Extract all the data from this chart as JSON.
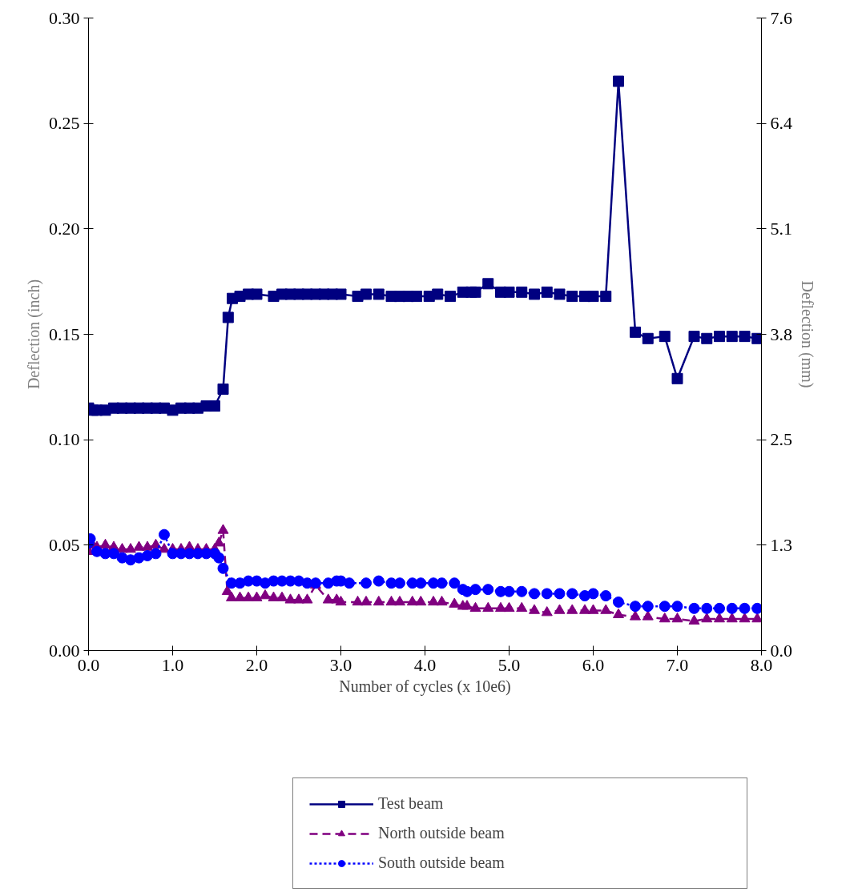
{
  "chart_data": {
    "type": "line",
    "xlabel": "Number of cycles (x 10e6)",
    "ylabel": "Deflection (inch)",
    "y2label": "Deflection (mm)",
    "xlim": [
      0,
      8
    ],
    "xticks": [
      {
        "value": 0,
        "label": "0.0"
      },
      {
        "value": 1,
        "label": "1.0"
      },
      {
        "value": 2,
        "label": "2.0"
      },
      {
        "value": 3,
        "label": "3.0"
      },
      {
        "value": 4,
        "label": "4.0"
      },
      {
        "value": 5,
        "label": "5.0"
      },
      {
        "value": 6,
        "label": "6.0"
      },
      {
        "value": 7,
        "label": "7.0"
      },
      {
        "value": 8,
        "label": "8.0"
      }
    ],
    "ylim": [
      0,
      0.3
    ],
    "yticks": [
      {
        "value": 0,
        "label": "0.00"
      },
      {
        "value": 0.05,
        "label": "0.05"
      },
      {
        "value": 0.1,
        "label": "0.10"
      },
      {
        "value": 0.15,
        "label": "0.15"
      },
      {
        "value": 0.2,
        "label": "0.20"
      },
      {
        "value": 0.25,
        "label": "0.25"
      },
      {
        "value": 0.3,
        "label": "0.30"
      }
    ],
    "y2lim": [
      0,
      7.62
    ],
    "y2ticks": [
      {
        "value": 0,
        "label": "0.0"
      },
      {
        "value": 1.27,
        "label": "1.3"
      },
      {
        "value": 2.54,
        "label": "2.5"
      },
      {
        "value": 3.81,
        "label": "3.8"
      },
      {
        "value": 5.08,
        "label": "5.1"
      },
      {
        "value": 6.35,
        "label": "6.4"
      },
      {
        "value": 7.62,
        "label": "7.6"
      }
    ],
    "grid": false,
    "legend": "bottom",
    "series": [
      {
        "name": "Test beam",
        "color": "#000080",
        "marker": "square",
        "line_style": "solid",
        "x": [
          0,
          0.05,
          0.1,
          0.2,
          0.3,
          0.4,
          0.5,
          0.6,
          0.7,
          0.8,
          0.9,
          1.0,
          1.1,
          1.2,
          1.3,
          1.4,
          1.5,
          1.6,
          1.66,
          1.71,
          1.8,
          1.9,
          2.0,
          2.2,
          2.3,
          2.4,
          2.5,
          2.6,
          2.7,
          2.8,
          2.9,
          3.0,
          3.2,
          3.3,
          3.45,
          3.6,
          3.7,
          3.8,
          3.9,
          4.05,
          4.15,
          4.3,
          4.45,
          4.55,
          4.6,
          4.75,
          4.9,
          5.0,
          5.15,
          5.3,
          5.45,
          5.6,
          5.75,
          5.9,
          6.0,
          6.15,
          6.3,
          6.5,
          6.65,
          6.85,
          7.0,
          7.2,
          7.35,
          7.5,
          7.65,
          7.8,
          7.95
        ],
        "values": [
          0.115,
          0.114,
          0.114,
          0.114,
          0.115,
          0.115,
          0.115,
          0.115,
          0.115,
          0.115,
          0.115,
          0.114,
          0.115,
          0.115,
          0.115,
          0.116,
          0.116,
          0.124,
          0.158,
          0.167,
          0.168,
          0.169,
          0.169,
          0.168,
          0.169,
          0.169,
          0.169,
          0.169,
          0.169,
          0.169,
          0.169,
          0.169,
          0.168,
          0.169,
          0.169,
          0.168,
          0.168,
          0.168,
          0.168,
          0.168,
          0.169,
          0.168,
          0.17,
          0.17,
          0.17,
          0.174,
          0.17,
          0.17,
          0.17,
          0.169,
          0.17,
          0.169,
          0.168,
          0.168,
          0.168,
          0.168,
          0.27,
          0.151,
          0.148,
          0.149,
          0.129,
          0.149,
          0.148,
          0.149,
          0.149,
          0.149,
          0.148
        ]
      },
      {
        "name": "North outside beam",
        "color": "#800080",
        "marker": "triangle",
        "line_style": "dashed",
        "x": [
          0,
          0.05,
          0.1,
          0.2,
          0.3,
          0.4,
          0.5,
          0.6,
          0.7,
          0.8,
          0.9,
          1.0,
          1.1,
          1.2,
          1.3,
          1.4,
          1.5,
          1.55,
          1.6,
          1.65,
          1.7,
          1.8,
          1.9,
          2.0,
          2.1,
          2.2,
          2.3,
          2.4,
          2.5,
          2.6,
          2.7,
          2.85,
          2.95,
          3.0,
          3.2,
          3.3,
          3.45,
          3.6,
          3.7,
          3.85,
          3.95,
          4.1,
          4.2,
          4.35,
          4.45,
          4.5,
          4.6,
          4.75,
          4.9,
          5.0,
          5.15,
          5.3,
          5.45,
          5.6,
          5.75,
          5.9,
          6.0,
          6.15,
          6.3,
          6.5,
          6.65,
          6.85,
          7.0,
          7.2,
          7.35,
          7.5,
          7.65,
          7.8,
          7.95
        ],
        "values": [
          0.047,
          0.05,
          0.049,
          0.05,
          0.049,
          0.048,
          0.048,
          0.049,
          0.049,
          0.05,
          0.048,
          0.048,
          0.048,
          0.049,
          0.048,
          0.048,
          0.048,
          0.051,
          0.057,
          0.028,
          0.025,
          0.025,
          0.025,
          0.025,
          0.026,
          0.025,
          0.025,
          0.024,
          0.024,
          0.024,
          0.031,
          0.024,
          0.024,
          0.023,
          0.023,
          0.023,
          0.023,
          0.023,
          0.023,
          0.023,
          0.023,
          0.023,
          0.023,
          0.022,
          0.021,
          0.021,
          0.02,
          0.02,
          0.02,
          0.02,
          0.02,
          0.019,
          0.018,
          0.019,
          0.019,
          0.019,
          0.019,
          0.019,
          0.017,
          0.016,
          0.016,
          0.015,
          0.015,
          0.014,
          0.015,
          0.015,
          0.015,
          0.015,
          0.015
        ]
      },
      {
        "name": "South outside beam",
        "color": "#0000ff",
        "marker": "circle",
        "line_style": "dotted",
        "x": [
          0,
          0.02,
          0.1,
          0.2,
          0.3,
          0.4,
          0.5,
          0.6,
          0.7,
          0.8,
          0.9,
          1.0,
          1.1,
          1.2,
          1.3,
          1.4,
          1.5,
          1.55,
          1.6,
          1.7,
          1.8,
          1.9,
          2.0,
          2.1,
          2.2,
          2.3,
          2.4,
          2.5,
          2.6,
          2.7,
          2.85,
          2.95,
          3.0,
          3.1,
          3.3,
          3.45,
          3.6,
          3.7,
          3.85,
          3.95,
          4.1,
          4.2,
          4.35,
          4.45,
          4.5,
          4.6,
          4.75,
          4.9,
          5.0,
          5.15,
          5.3,
          5.45,
          5.6,
          5.75,
          5.9,
          6.0,
          6.15,
          6.3,
          6.5,
          6.65,
          6.85,
          7.0,
          7.2,
          7.35,
          7.5,
          7.65,
          7.8,
          7.95
        ],
        "values": [
          0.051,
          0.053,
          0.047,
          0.046,
          0.046,
          0.044,
          0.043,
          0.044,
          0.045,
          0.046,
          0.055,
          0.046,
          0.046,
          0.046,
          0.046,
          0.046,
          0.046,
          0.044,
          0.039,
          0.032,
          0.032,
          0.033,
          0.033,
          0.032,
          0.033,
          0.033,
          0.033,
          0.033,
          0.032,
          0.032,
          0.032,
          0.033,
          0.033,
          0.032,
          0.032,
          0.033,
          0.032,
          0.032,
          0.032,
          0.032,
          0.032,
          0.032,
          0.032,
          0.029,
          0.028,
          0.029,
          0.029,
          0.028,
          0.028,
          0.028,
          0.027,
          0.027,
          0.027,
          0.027,
          0.026,
          0.027,
          0.026,
          0.023,
          0.021,
          0.021,
          0.021,
          0.021,
          0.02,
          0.02,
          0.02,
          0.02,
          0.02,
          0.02
        ]
      }
    ]
  }
}
